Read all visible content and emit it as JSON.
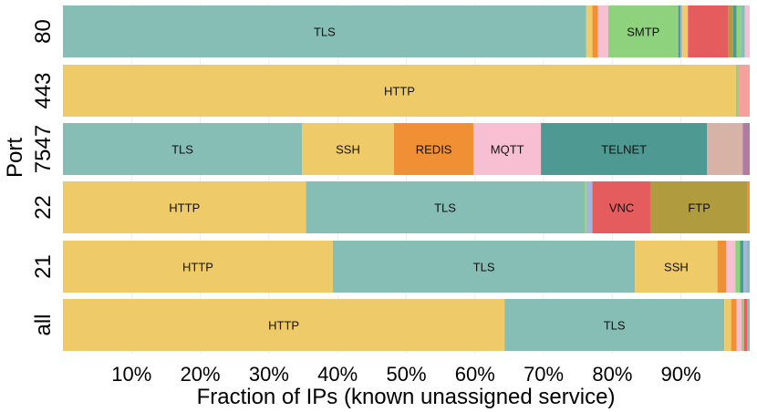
{
  "chart_data": {
    "type": "bar",
    "orientation": "horizontal-stacked",
    "xlabel": "Fraction of IPs (known unassigned service)",
    "ylabel": "Port",
    "xlim": [
      0,
      100
    ],
    "x_ticks": [
      "10%",
      "20%",
      "30%",
      "40%",
      "50%",
      "60%",
      "70%",
      "80%",
      "90%"
    ],
    "x_tick_values": [
      10,
      20,
      30,
      40,
      50,
      60,
      70,
      80,
      90
    ],
    "grid": true,
    "categories": [
      "80",
      "443",
      "7547",
      "22",
      "21",
      "all"
    ],
    "rows": [
      {
        "category": "80",
        "segments": [
          {
            "label": "TLS",
            "value": 76.2,
            "color": "#86BDB5"
          },
          {
            "label": "",
            "value": 0.9,
            "color": "#EECB68"
          },
          {
            "label": "",
            "value": 0.8,
            "color": "#F08F33"
          },
          {
            "label": "",
            "value": 1.5,
            "color": "#F8BFD3"
          },
          {
            "label": "SMTP",
            "value": 10.2,
            "color": "#8ED27D"
          },
          {
            "label": "",
            "value": 0.3,
            "color": "#4E9A92"
          },
          {
            "label": "",
            "value": 0.3,
            "color": "#A6B5DA"
          },
          {
            "label": "",
            "value": 0.8,
            "color": "#EECB68"
          },
          {
            "label": "",
            "value": 5.9,
            "color": "#E45C5E"
          },
          {
            "label": "",
            "value": 0.7,
            "color": "#B09C3E"
          },
          {
            "label": "",
            "value": 0.5,
            "color": "#4E9A92"
          },
          {
            "label": "",
            "value": 0.6,
            "color": "#8ED27D"
          },
          {
            "label": "",
            "value": 0.6,
            "color": "#86BDB5"
          },
          {
            "label": "",
            "value": 0.7,
            "color": "#F8BFD3"
          }
        ]
      },
      {
        "category": "443",
        "segments": [
          {
            "label": "HTTP",
            "value": 98.0,
            "color": "#EECB68"
          },
          {
            "label": "",
            "value": 0.4,
            "color": "#8ED27D"
          },
          {
            "label": "",
            "value": 1.6,
            "color": "#F5A09A"
          }
        ]
      },
      {
        "category": "7547",
        "segments": [
          {
            "label": "TLS",
            "value": 34.8,
            "color": "#86BDB5"
          },
          {
            "label": "SSH",
            "value": 13.4,
            "color": "#EECB68"
          },
          {
            "label": "REDIS",
            "value": 11.6,
            "color": "#F08F33"
          },
          {
            "label": "MQTT",
            "value": 9.8,
            "color": "#F8BFD3"
          },
          {
            "label": "TELNET",
            "value": 24.2,
            "color": "#4E9A92"
          },
          {
            "label": "",
            "value": 5.2,
            "color": "#D6B3A6"
          },
          {
            "label": "",
            "value": 1.0,
            "color": "#B07AA2"
          }
        ]
      },
      {
        "category": "22",
        "segments": [
          {
            "label": "HTTP",
            "value": 35.4,
            "color": "#EECB68"
          },
          {
            "label": "TLS",
            "value": 40.5,
            "color": "#86BDB5"
          },
          {
            "label": "",
            "value": 0.3,
            "color": "#8ED27D"
          },
          {
            "label": "",
            "value": 0.9,
            "color": "#A6B5DA"
          },
          {
            "label": "VNC",
            "value": 8.5,
            "color": "#E45C5E"
          },
          {
            "label": "FTP",
            "value": 14.1,
            "color": "#B09C3E"
          },
          {
            "label": "",
            "value": 0.3,
            "color": "#F08F33"
          }
        ]
      },
      {
        "category": "21",
        "segments": [
          {
            "label": "HTTP",
            "value": 39.3,
            "color": "#EECB68"
          },
          {
            "label": "TLS",
            "value": 44.0,
            "color": "#86BDB5"
          },
          {
            "label": "SSH",
            "value": 12.0,
            "color": "#EECB68"
          },
          {
            "label": "",
            "value": 1.3,
            "color": "#F08F33"
          },
          {
            "label": "",
            "value": 1.3,
            "color": "#F8BFD3"
          },
          {
            "label": "",
            "value": 0.7,
            "color": "#8ED27D"
          },
          {
            "label": "",
            "value": 0.5,
            "color": "#4E9A92"
          },
          {
            "label": "",
            "value": 0.5,
            "color": "#A6B5DA"
          },
          {
            "label": "",
            "value": 0.4,
            "color": "#86BDB5"
          }
        ]
      },
      {
        "category": "all",
        "segments": [
          {
            "label": "HTTP",
            "value": 64.3,
            "color": "#EECB68"
          },
          {
            "label": "TLS",
            "value": 32.0,
            "color": "#86BDB5"
          },
          {
            "label": "",
            "value": 1.0,
            "color": "#EECB68"
          },
          {
            "label": "",
            "value": 0.8,
            "color": "#F08F33"
          },
          {
            "label": "",
            "value": 0.7,
            "color": "#F8BFD3"
          },
          {
            "label": "",
            "value": 0.4,
            "color": "#8ED27D"
          },
          {
            "label": "",
            "value": 0.4,
            "color": "#E45C5E"
          },
          {
            "label": "",
            "value": 0.4,
            "color": "#86BDB5"
          }
        ]
      }
    ]
  }
}
